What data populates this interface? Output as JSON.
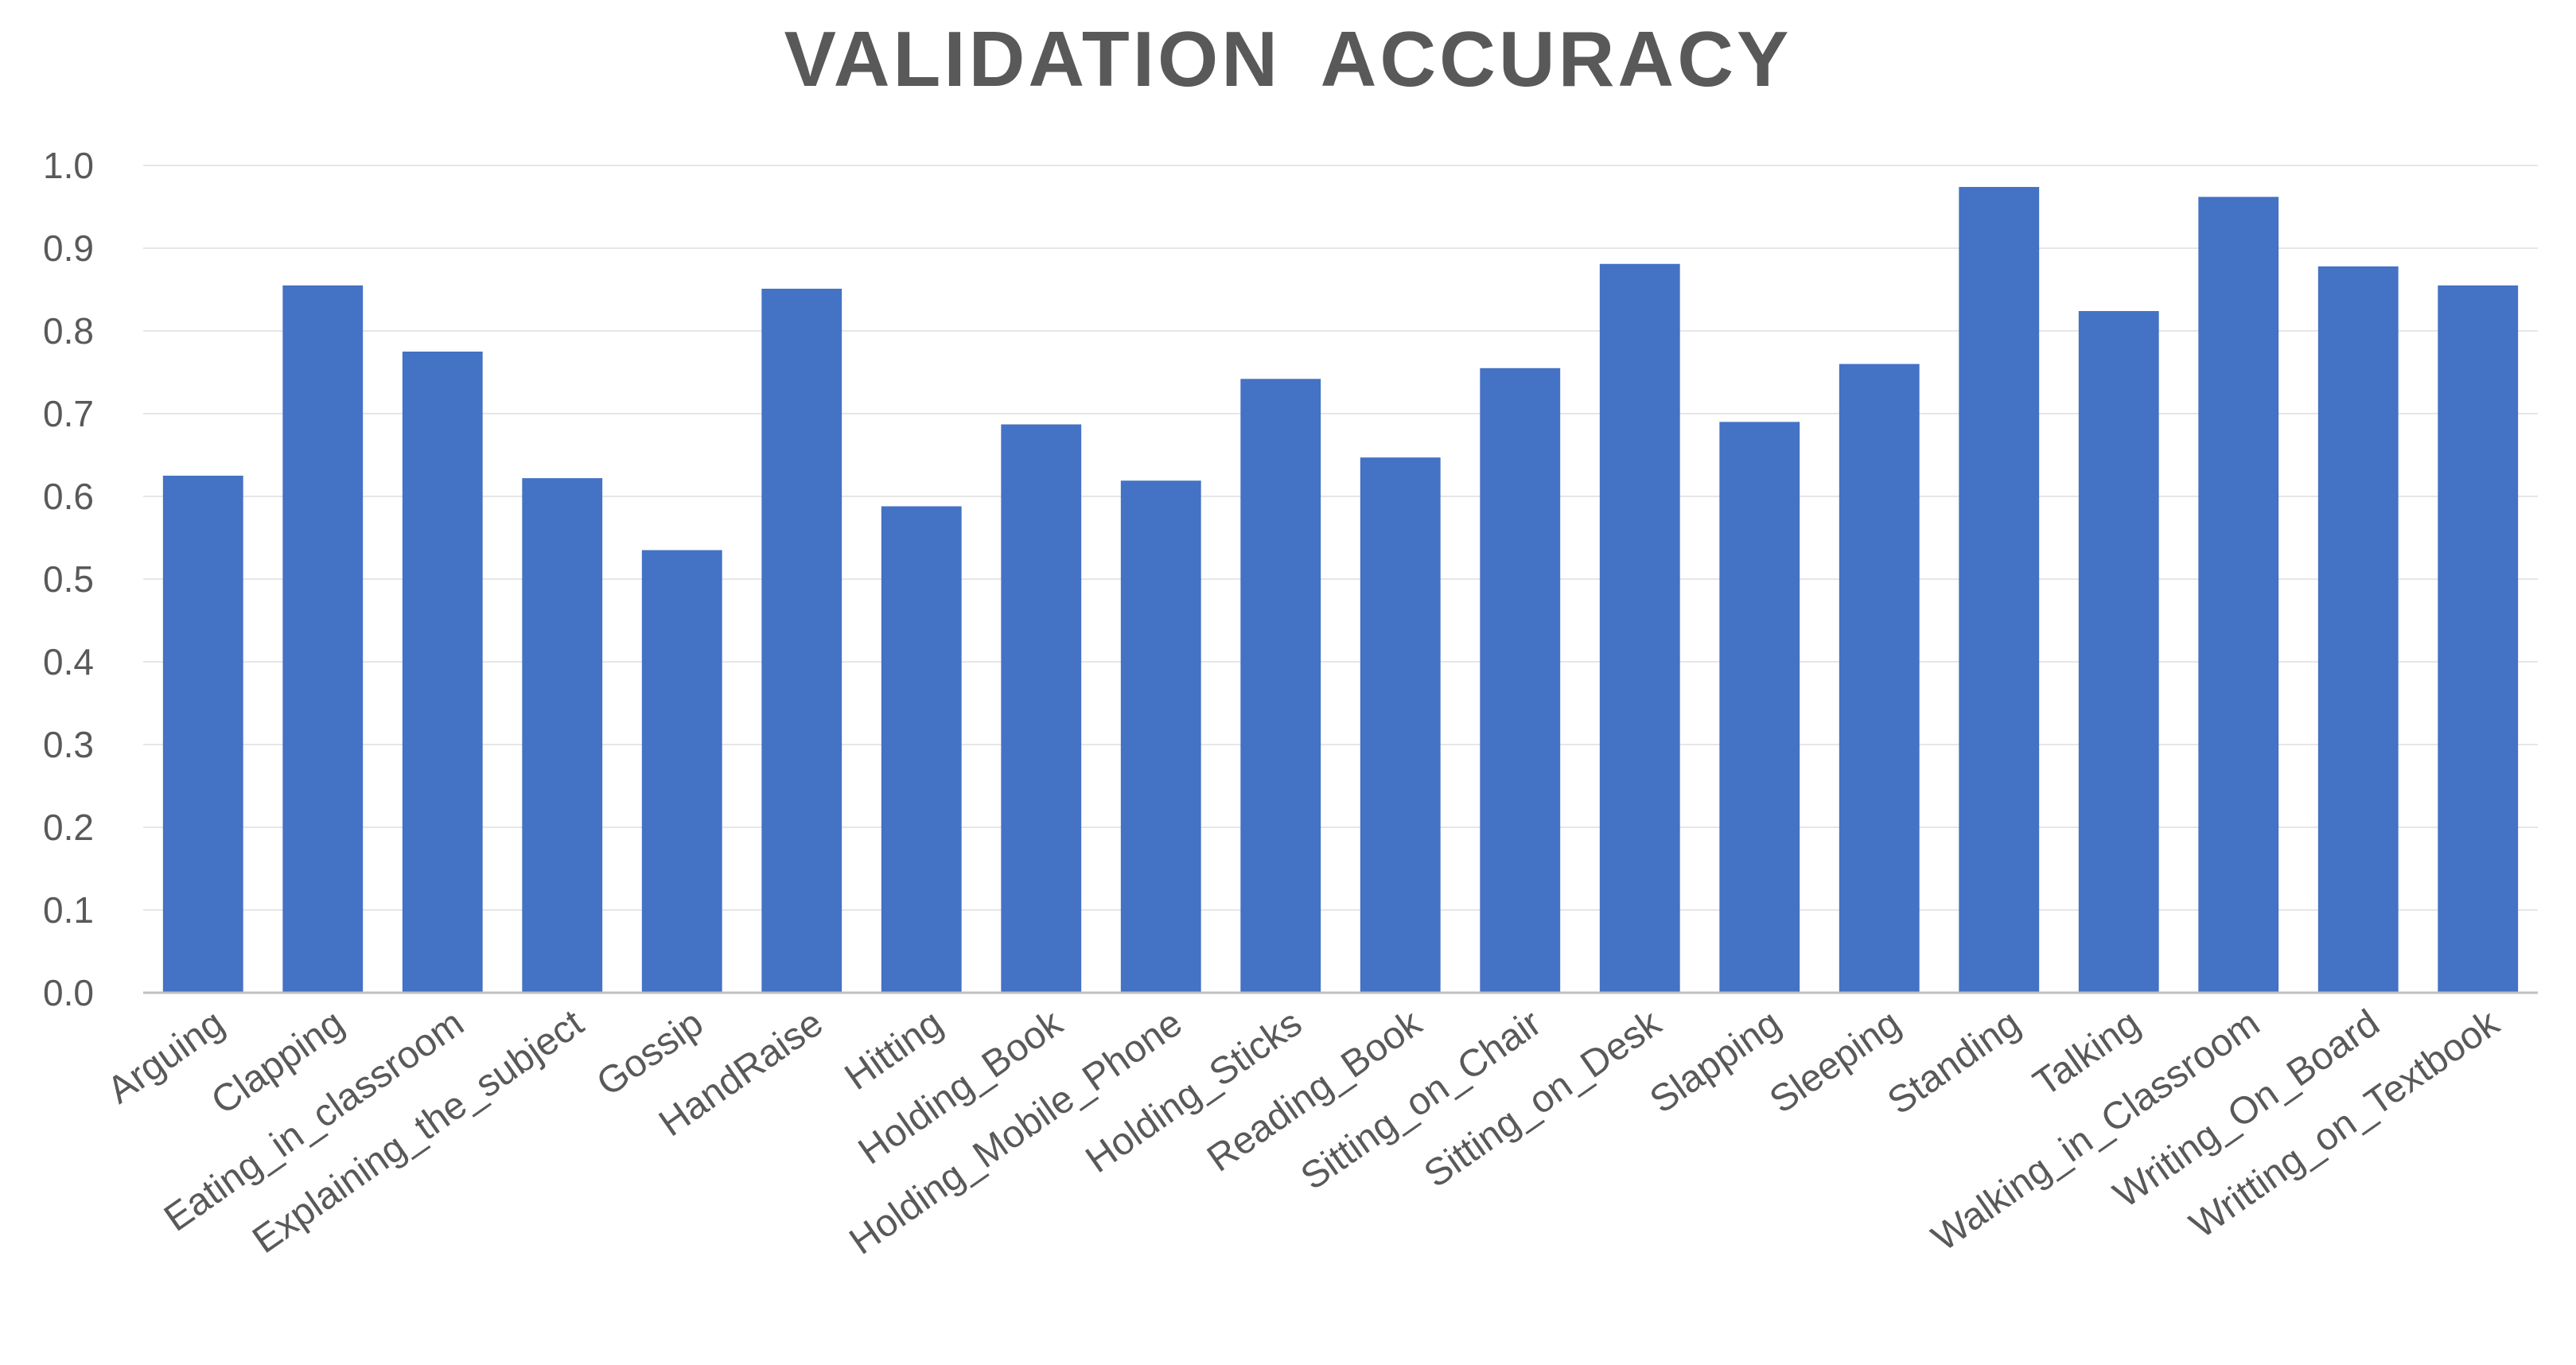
{
  "chart_data": {
    "type": "bar",
    "title": "VALIDATION  ACCURACY",
    "xlabel": "",
    "ylabel": "",
    "ylim": [
      0,
      1.0
    ],
    "yticks": [
      "0.0",
      "0.1",
      "0.2",
      "0.3",
      "0.4",
      "0.5",
      "0.6",
      "0.7",
      "0.8",
      "0.9",
      "1.0"
    ],
    "grid": true,
    "bar_color": "#4472C4",
    "categories": [
      "Arguing",
      "Clapping",
      "Eating_in_classroom",
      "Explaining_the_subject",
      "Gossip",
      "HandRaise",
      "Hitting",
      "Holding_Book",
      "Holding_Mobile_Phone",
      "Holding_Sticks",
      "Reading_Book",
      "Sitting_on_Chair",
      "Sitting_on_Desk",
      "Slapping",
      "Sleeping",
      "Standing",
      "Talking",
      "Walking_in_Classroom",
      "Writing_On_Board",
      "Writting_on_Textbook"
    ],
    "values": [
      0.625,
      0.855,
      0.775,
      0.622,
      0.535,
      0.851,
      0.588,
      0.687,
      0.619,
      0.742,
      0.647,
      0.755,
      0.881,
      0.69,
      0.76,
      0.974,
      0.824,
      0.962,
      0.878,
      0.855
    ]
  }
}
